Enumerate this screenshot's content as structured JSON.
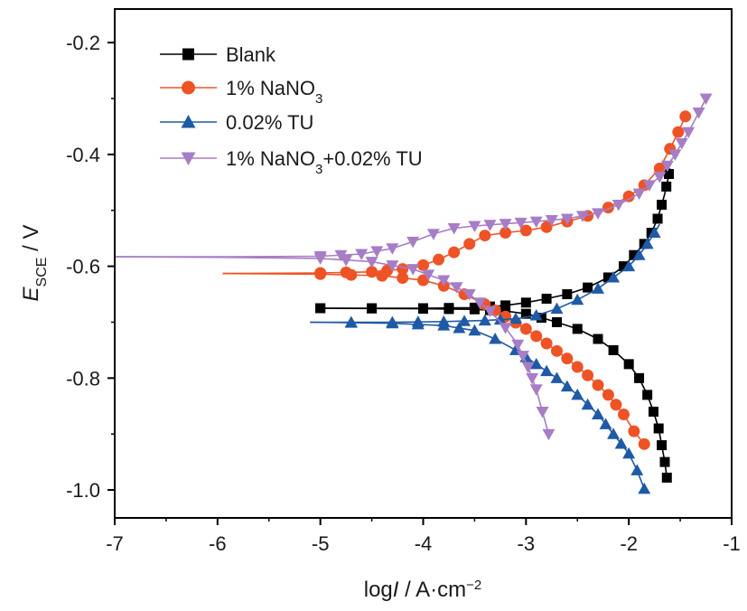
{
  "chart_data": {
    "type": "line",
    "title": "",
    "xlabel_parts": {
      "pre": "log",
      "italic": "I",
      "post": " / A·cm",
      "sup": "−2"
    },
    "ylabel_parts": {
      "italic": "E",
      "sub": "SCE",
      "post": " / V"
    },
    "xlim": [
      -7,
      -1
    ],
    "ylim": [
      -1.05,
      -0.14
    ],
    "xticks": [
      -7,
      -6,
      -5,
      -4,
      -3,
      -2,
      -1
    ],
    "xtick_labels": [
      "-7",
      "-6",
      "-5",
      "-4",
      "-3",
      "-2",
      "-1"
    ],
    "yticks": [
      -1.0,
      -0.8,
      -0.6,
      -0.4,
      -0.2
    ],
    "ytick_labels": [
      "-1.0",
      "-0.8",
      "-0.6",
      "-0.4",
      "-0.2"
    ],
    "grid": false,
    "legend_position": "top-left",
    "series": [
      {
        "name": "Blank",
        "legend_parts": {
          "main": "Blank"
        },
        "color": "#000000",
        "marker": "square",
        "ecorr": -0.675,
        "anodic": [
          [
            -5.0,
            -0.675
          ],
          [
            -4.0,
            -0.675
          ],
          [
            -3.5,
            -0.674
          ],
          [
            -3.2,
            -0.67
          ],
          [
            -3.0,
            -0.665
          ],
          [
            -2.8,
            -0.658
          ],
          [
            -2.6,
            -0.65
          ],
          [
            -2.4,
            -0.638
          ],
          [
            -2.2,
            -0.62
          ],
          [
            -2.05,
            -0.6
          ],
          [
            -1.95,
            -0.58
          ],
          [
            -1.85,
            -0.56
          ],
          [
            -1.78,
            -0.54
          ],
          [
            -1.72,
            -0.515
          ],
          [
            -1.68,
            -0.49
          ],
          [
            -1.65,
            -0.47
          ],
          [
            -1.62,
            -0.445
          ],
          [
            -1.6,
            -0.425
          ]
        ],
        "cathodic": [
          [
            -5.0,
            -0.675
          ],
          [
            -4.0,
            -0.676
          ],
          [
            -3.5,
            -0.677
          ],
          [
            -3.2,
            -0.68
          ],
          [
            -3.0,
            -0.685
          ],
          [
            -2.85,
            -0.692
          ],
          [
            -2.7,
            -0.7
          ],
          [
            -2.5,
            -0.712
          ],
          [
            -2.3,
            -0.73
          ],
          [
            -2.15,
            -0.75
          ],
          [
            -2.0,
            -0.775
          ],
          [
            -1.9,
            -0.8
          ],
          [
            -1.82,
            -0.83
          ],
          [
            -1.76,
            -0.86
          ],
          [
            -1.71,
            -0.89
          ],
          [
            -1.68,
            -0.92
          ],
          [
            -1.65,
            -0.95
          ],
          [
            -1.63,
            -0.978
          ]
        ]
      },
      {
        "name": "1% NaNO3",
        "legend_parts": {
          "main": "1% NaNO",
          "sub": "3"
        },
        "color": "#ee5325",
        "marker": "circle",
        "ecorr": -0.613,
        "anodic": [
          [
            -5.95,
            -0.613
          ],
          [
            -5.0,
            -0.612
          ],
          [
            -4.5,
            -0.61
          ],
          [
            -4.2,
            -0.605
          ],
          [
            -4.0,
            -0.598
          ],
          [
            -3.85,
            -0.588
          ],
          [
            -3.7,
            -0.575
          ],
          [
            -3.55,
            -0.56
          ],
          [
            -3.4,
            -0.545
          ],
          [
            -3.2,
            -0.54
          ],
          [
            -3.0,
            -0.536
          ],
          [
            -2.8,
            -0.53
          ],
          [
            -2.6,
            -0.52
          ],
          [
            -2.4,
            -0.51
          ],
          [
            -2.2,
            -0.495
          ],
          [
            -2.0,
            -0.475
          ],
          [
            -1.85,
            -0.455
          ],
          [
            -1.7,
            -0.425
          ],
          [
            -1.6,
            -0.39
          ],
          [
            -1.52,
            -0.36
          ],
          [
            -1.45,
            -0.332
          ]
        ],
        "cathodic": [
          [
            -5.95,
            -0.613
          ],
          [
            -5.0,
            -0.614
          ],
          [
            -4.4,
            -0.617
          ],
          [
            -4.0,
            -0.625
          ],
          [
            -3.8,
            -0.635
          ],
          [
            -3.6,
            -0.65
          ],
          [
            -3.4,
            -0.668
          ],
          [
            -3.2,
            -0.69
          ],
          [
            -3.0,
            -0.712
          ],
          [
            -2.8,
            -0.738
          ],
          [
            -2.6,
            -0.765
          ],
          [
            -2.4,
            -0.795
          ],
          [
            -2.2,
            -0.83
          ],
          [
            -2.05,
            -0.865
          ],
          [
            -1.95,
            -0.895
          ],
          [
            -1.85,
            -0.918
          ]
        ]
      },
      {
        "name": "0.02% TU",
        "legend_parts": {
          "main": "0.02% TU"
        },
        "color": "#1f5aa6",
        "marker": "triangle-up",
        "ecorr": -0.7,
        "anodic": [
          [
            -5.1,
            -0.7
          ],
          [
            -4.3,
            -0.7
          ],
          [
            -3.8,
            -0.699
          ],
          [
            -3.4,
            -0.697
          ],
          [
            -3.1,
            -0.694
          ],
          [
            -2.9,
            -0.688
          ],
          [
            -2.7,
            -0.676
          ],
          [
            -2.5,
            -0.66
          ],
          [
            -2.3,
            -0.64
          ],
          [
            -2.15,
            -0.62
          ],
          [
            -2.0,
            -0.6
          ],
          [
            -1.9,
            -0.58
          ],
          [
            -1.82,
            -0.56
          ],
          [
            -1.75,
            -0.54
          ],
          [
            -1.7,
            -0.525
          ]
        ],
        "cathodic": [
          [
            -5.1,
            -0.7
          ],
          [
            -4.3,
            -0.702
          ],
          [
            -3.8,
            -0.706
          ],
          [
            -3.5,
            -0.715
          ],
          [
            -3.3,
            -0.73
          ],
          [
            -3.1,
            -0.75
          ],
          [
            -2.9,
            -0.775
          ],
          [
            -2.7,
            -0.8
          ],
          [
            -2.5,
            -0.83
          ],
          [
            -2.3,
            -0.865
          ],
          [
            -2.15,
            -0.9
          ],
          [
            -2.0,
            -0.935
          ],
          [
            -1.92,
            -0.965
          ],
          [
            -1.85,
            -0.998
          ]
        ]
      },
      {
        "name": "1% NaNO3+0.02% TU",
        "legend_parts": {
          "main": "1% NaNO",
          "sub": "3",
          "post": "+0.02% TU"
        },
        "color": "#a77dc6",
        "marker": "triangle-down",
        "ecorr": -0.583,
        "anodic": [
          [
            -7.0,
            -0.583
          ],
          [
            -6.0,
            -0.583
          ],
          [
            -5.0,
            -0.582
          ],
          [
            -4.6,
            -0.578
          ],
          [
            -4.3,
            -0.568
          ],
          [
            -4.1,
            -0.556
          ],
          [
            -3.9,
            -0.542
          ],
          [
            -3.7,
            -0.532
          ],
          [
            -3.5,
            -0.528
          ],
          [
            -3.2,
            -0.524
          ],
          [
            -2.9,
            -0.52
          ],
          [
            -2.6,
            -0.515
          ],
          [
            -2.3,
            -0.505
          ],
          [
            -2.1,
            -0.49
          ],
          [
            -1.9,
            -0.47
          ],
          [
            -1.7,
            -0.44
          ],
          [
            -1.55,
            -0.4
          ],
          [
            -1.42,
            -0.36
          ],
          [
            -1.32,
            -0.325
          ],
          [
            -1.25,
            -0.3
          ]
        ],
        "cathodic": [
          [
            -7.0,
            -0.583
          ],
          [
            -6.0,
            -0.584
          ],
          [
            -5.0,
            -0.586
          ],
          [
            -4.5,
            -0.592
          ],
          [
            -4.1,
            -0.605
          ],
          [
            -3.8,
            -0.625
          ],
          [
            -3.55,
            -0.65
          ],
          [
            -3.35,
            -0.68
          ],
          [
            -3.2,
            -0.71
          ],
          [
            -3.08,
            -0.74
          ],
          [
            -2.98,
            -0.78
          ],
          [
            -2.9,
            -0.82
          ],
          [
            -2.84,
            -0.86
          ],
          [
            -2.78,
            -0.9
          ]
        ]
      }
    ]
  }
}
